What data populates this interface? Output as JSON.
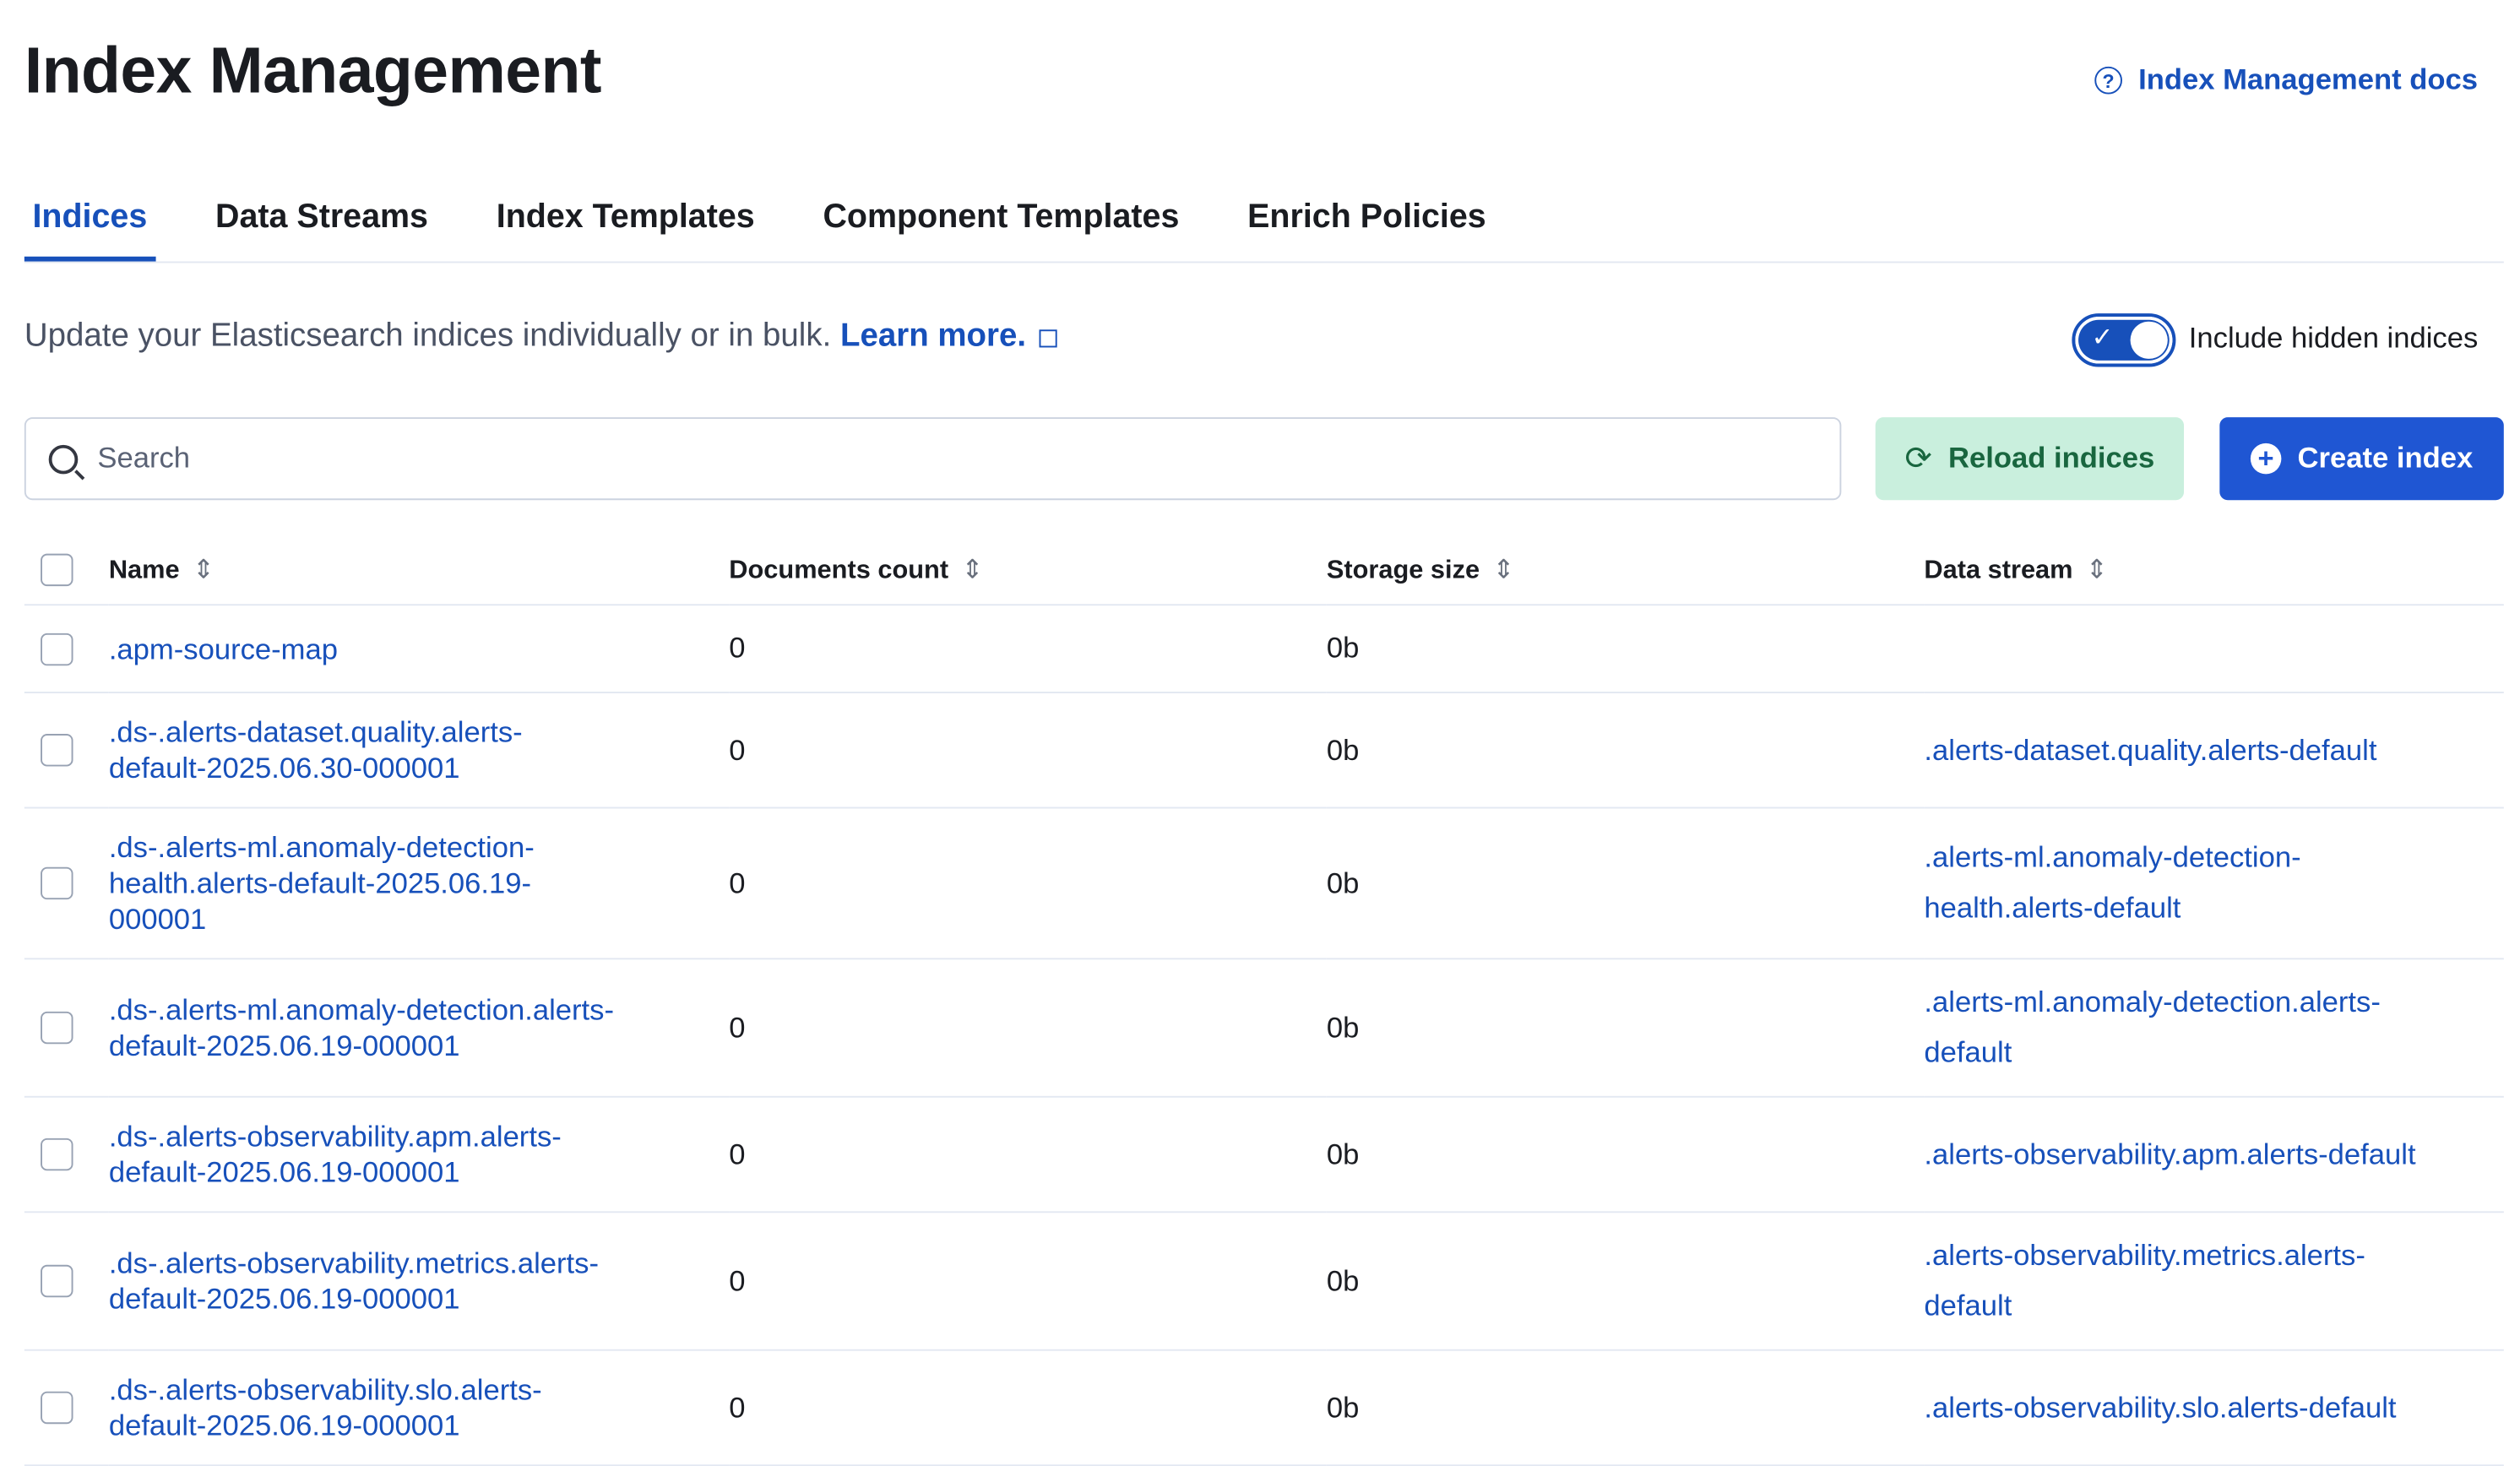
{
  "page": {
    "title": "Index Management",
    "docs_link": "Index Management docs"
  },
  "tabs": [
    {
      "label": "Indices",
      "active": true
    },
    {
      "label": "Data Streams"
    },
    {
      "label": "Index Templates"
    },
    {
      "label": "Component Templates"
    },
    {
      "label": "Enrich Policies"
    }
  ],
  "description": {
    "text": "Update your Elasticsearch indices individually or in bulk. ",
    "link": "Learn more."
  },
  "toggle": {
    "label": "Include hidden indices",
    "checked": true
  },
  "search": {
    "placeholder": "Search",
    "value": ""
  },
  "buttons": {
    "reload": "Reload indices",
    "create": "Create index"
  },
  "table": {
    "columns": [
      "Name",
      "Documents count",
      "Storage size",
      "Data stream"
    ],
    "rows": [
      {
        "name": ".apm-source-map",
        "docs": "0",
        "size": "0b",
        "data_stream": ""
      },
      {
        "name": ".ds-.alerts-dataset.quality.alerts-default-2025.06.30-000001",
        "docs": "0",
        "size": "0b",
        "data_stream": ".alerts-dataset.quality.alerts-default"
      },
      {
        "name": ".ds-.alerts-ml.anomaly-detection-health.alerts-default-2025.06.19-000001",
        "docs": "0",
        "size": "0b",
        "data_stream": ".alerts-ml.anomaly-detection-health.alerts-default"
      },
      {
        "name": ".ds-.alerts-ml.anomaly-detection.alerts-default-2025.06.19-000001",
        "docs": "0",
        "size": "0b",
        "data_stream": ".alerts-ml.anomaly-detection.alerts-default"
      },
      {
        "name": ".ds-.alerts-observability.apm.alerts-default-2025.06.19-000001",
        "docs": "0",
        "size": "0b",
        "data_stream": ".alerts-observability.apm.alerts-default"
      },
      {
        "name": ".ds-.alerts-observability.metrics.alerts-default-2025.06.19-000001",
        "docs": "0",
        "size": "0b",
        "data_stream": ".alerts-observability.metrics.alerts-default"
      },
      {
        "name": ".ds-.alerts-observability.slo.alerts-default-2025.06.19-000001",
        "docs": "0",
        "size": "0b",
        "data_stream": ".alerts-observability.slo.alerts-default"
      }
    ]
  },
  "colors": {
    "primary": "#1750ba",
    "reload_bg": "#c9efdd",
    "create_bg": "#1f56d3"
  }
}
